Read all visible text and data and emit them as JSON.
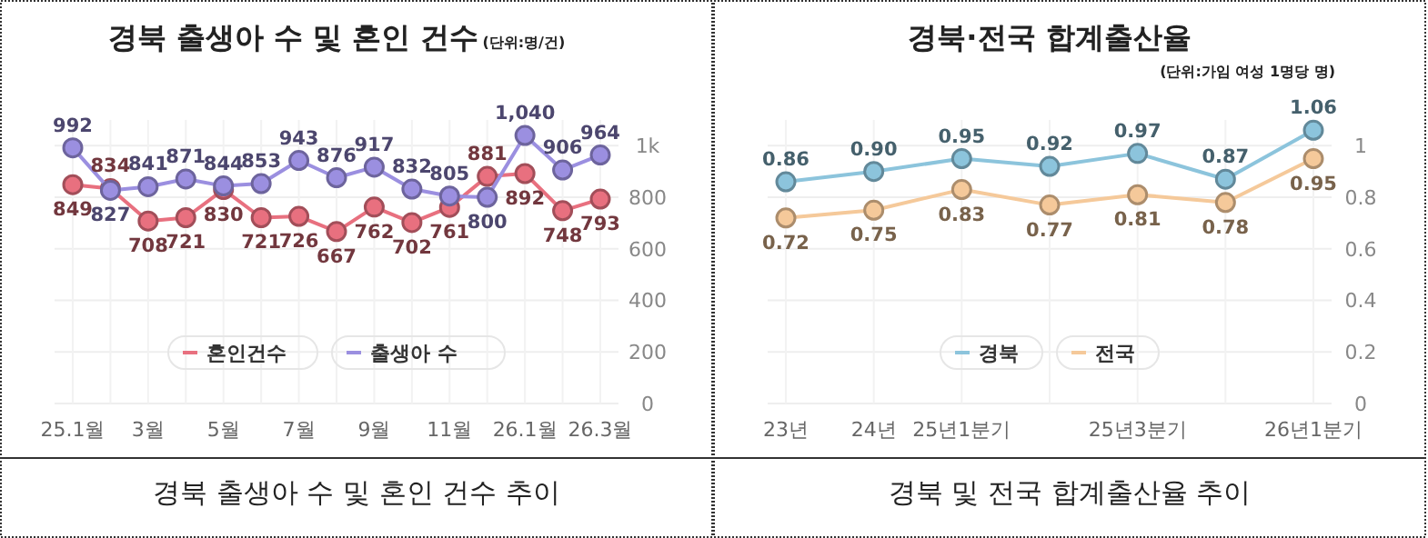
{
  "chart_data": [
    {
      "type": "line",
      "title": "경북 출생아 수 및 혼인 건수",
      "subtitle": "(단위:명/건)",
      "categories": [
        "25.1월",
        null,
        "3월",
        null,
        "5월",
        null,
        "7월",
        null,
        "9월",
        null,
        "11월",
        null,
        "26.1월",
        null,
        "26.3월"
      ],
      "series": [
        {
          "name": "혼인건수",
          "color": "#e8707f",
          "values": [
            849,
            834,
            708,
            721,
            830,
            721,
            726,
            667,
            762,
            702,
            761,
            881,
            892,
            748,
            793
          ],
          "value_labels": [
            "849",
            "834",
            "708",
            "721",
            "830",
            "721",
            "726",
            "667",
            "762",
            "702",
            "761",
            "881",
            "892",
            "748",
            "793"
          ]
        },
        {
          "name": "출생아 수",
          "color": "#9b8fe0",
          "values": [
            992,
            827,
            841,
            871,
            844,
            853,
            943,
            876,
            917,
            832,
            805,
            800,
            1040,
            906,
            964
          ],
          "value_labels": [
            "992",
            "827",
            "841",
            "871",
            "844",
            "853",
            "943",
            "876",
            "917",
            "832",
            "805",
            "800",
            "1,040",
            "906",
            "964"
          ]
        }
      ],
      "ylim": [
        0,
        1100
      ],
      "yticks": [
        0,
        200,
        400,
        600,
        800,
        {
          "value": 1000,
          "label": "1k"
        }
      ],
      "grid": true,
      "legend": "bottom",
      "marker": "circle",
      "annotations": [
        "경북 출생아 수 및 혼인 건수 추이"
      ]
    },
    {
      "type": "line",
      "title": "경북·전국 합계출산율",
      "subtitle": "(단위:가임 여성 1명당 명)",
      "categories": [
        "23년",
        "24년",
        "25년1분기",
        null,
        "25년3분기",
        null,
        "26년1분기"
      ],
      "series": [
        {
          "name": "경북",
          "color": "#8cc4dc",
          "values": [
            0.86,
            0.9,
            0.95,
            0.92,
            0.97,
            0.87,
            1.06
          ],
          "value_labels": [
            "0.86",
            "0.90",
            "0.95",
            "0.92",
            "0.97",
            "0.87",
            "1.06"
          ]
        },
        {
          "name": "전국",
          "color": "#f5c99a",
          "values": [
            0.72,
            0.75,
            0.83,
            0.77,
            0.81,
            0.78,
            0.95
          ],
          "value_labels": [
            "0.72",
            "0.75",
            "0.83",
            "0.77",
            "0.81",
            "0.78",
            "0.95"
          ]
        }
      ],
      "ylim": [
        0,
        1.1
      ],
      "yticks": [
        0,
        0.2,
        0.4,
        0.6,
        0.8,
        1
      ],
      "grid": true,
      "legend": "bottom",
      "marker": "circle",
      "annotations": [
        "경북 및 전국 합계출산율 추이"
      ]
    }
  ]
}
